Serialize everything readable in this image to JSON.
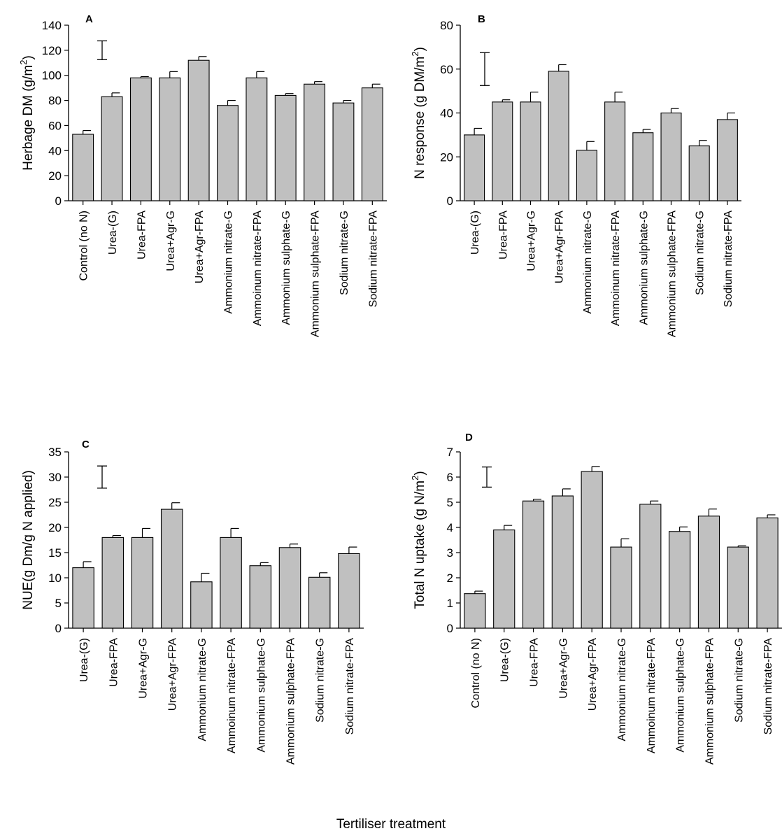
{
  "x_axis_label": "Tertiliser treatment",
  "chart_data": [
    {
      "panel": "A",
      "type": "bar",
      "ylabel": "Herbage DM (g/m",
      "ylabel_sup": "2",
      "ylabel_tail": ")",
      "ylim": [
        0,
        140
      ],
      "yticks": [
        0,
        20,
        40,
        60,
        80,
        100,
        120,
        140
      ],
      "categories": [
        "Control (no N)",
        "Urea-(G)",
        "Urea-FPA",
        "Urea+Agr-G",
        "Urea+Agr-FPA",
        "Ammonium nitrate-G",
        "Ammoinum nitrate-FPA",
        "Ammonium sulphate-G",
        "Ammonium sulphate-FPA",
        "Sodium nitrate-G",
        "Sodium nitrate-FPA"
      ],
      "values": [
        53,
        83,
        98,
        98,
        112,
        76,
        98,
        84,
        93,
        78,
        90
      ],
      "errors": [
        3,
        3,
        1,
        5,
        3,
        4,
        5,
        1.5,
        2,
        2,
        3
      ],
      "lsd_bar": [
        112.5,
        127.5
      ],
      "bar_color": "#c0c0c0"
    },
    {
      "panel": "B",
      "type": "bar",
      "ylabel": "N response (g DM/m",
      "ylabel_sup": "2",
      "ylabel_tail": ")",
      "ylim": [
        0,
        80
      ],
      "yticks": [
        0,
        20,
        40,
        60,
        80
      ],
      "categories": [
        "Urea-(G)",
        "Urea-FPA",
        "Urea+Agr-G",
        "Urea+Agr-FPA",
        "Ammonium nitrate-G",
        "Ammoinum nitrate-FPA",
        "Ammonium sulphate-G",
        "Ammonium sulphate-FPA",
        "Sodium nitrate-G",
        "Sodium nitrate-FPA"
      ],
      "values": [
        30,
        45,
        45,
        59,
        23,
        45,
        31,
        40,
        25,
        37
      ],
      "errors": [
        3,
        1,
        4.5,
        3,
        4,
        4.5,
        1.5,
        2,
        2.5,
        3
      ],
      "lsd_bar": [
        52.5,
        67.5
      ],
      "bar_color": "#c0c0c0"
    },
    {
      "panel": "C",
      "type": "bar",
      "ylabel": "NUE(g Dm/g N applied)",
      "ylabel_sup": "",
      "ylabel_tail": "",
      "ylim": [
        0,
        35
      ],
      "yticks": [
        0,
        5,
        10,
        15,
        20,
        25,
        30,
        35
      ],
      "categories": [
        "Urea-(G)",
        "Urea-FPA",
        "Urea+Agr-G",
        "Urea+Agr-FPA",
        "Ammonium nitrate-G",
        "Ammoinum nitrate-FPA",
        "Ammonium sulphate-G",
        "Ammonium sulphate-FPA",
        "Sodium nitrate-G",
        "Sodium nitrate-FPA"
      ],
      "values": [
        12,
        18,
        18,
        23.6,
        9.2,
        18,
        12.4,
        16,
        10.1,
        14.8
      ],
      "errors": [
        1.2,
        0.4,
        1.8,
        1.3,
        1.7,
        1.8,
        0.6,
        0.7,
        0.9,
        1.3
      ],
      "lsd_bar": [
        27.8,
        32.2
      ],
      "bar_color": "#c0c0c0"
    },
    {
      "panel": "D",
      "type": "bar",
      "ylabel": "Total N uptake (g N/m",
      "ylabel_sup": "2",
      "ylabel_tail": ")",
      "ylim": [
        0,
        7
      ],
      "yticks": [
        0,
        1,
        2,
        3,
        4,
        5,
        6,
        7
      ],
      "categories": [
        "Control (no N)",
        "Urea-(G)",
        "Urea-FPA",
        "Urea+Agr-G",
        "Urea+Agr-FPA",
        "Ammonium nitrate-G",
        "Ammoinum nitrate-FPA",
        "Ammonium sulphate-G",
        "Ammonium sulphate-FPA",
        "Sodium nitrate-G",
        "Sodium nitrate-FPA"
      ],
      "values": [
        1.37,
        3.9,
        5.05,
        5.25,
        6.22,
        3.22,
        4.92,
        3.84,
        4.45,
        3.22,
        4.38
      ],
      "errors": [
        0.1,
        0.18,
        0.07,
        0.28,
        0.2,
        0.33,
        0.13,
        0.18,
        0.28,
        0.05,
        0.12
      ],
      "lsd_bar": [
        5.6,
        6.4
      ],
      "bar_color": "#c0c0c0"
    }
  ]
}
